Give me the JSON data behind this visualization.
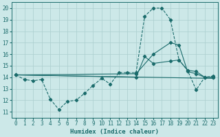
{
  "background_color": "#cce8e8",
  "grid_color": "#aacece",
  "line_color": "#1a6b6b",
  "xlabel": "Humidex (Indice chaleur)",
  "xlim": [
    -0.5,
    23.5
  ],
  "ylim": [
    10.5,
    20.5
  ],
  "yticks": [
    11,
    12,
    13,
    14,
    15,
    16,
    17,
    18,
    19,
    20
  ],
  "xticks": [
    0,
    1,
    2,
    3,
    4,
    5,
    6,
    7,
    8,
    9,
    10,
    11,
    12,
    13,
    14,
    15,
    16,
    17,
    18,
    19,
    20,
    21,
    22,
    23
  ],
  "series1_x": [
    0,
    1,
    2,
    3,
    4,
    5,
    6,
    7,
    8,
    9,
    10,
    11,
    12,
    13,
    14,
    15,
    16,
    17,
    18,
    19,
    20,
    21,
    22,
    23
  ],
  "series1_y": [
    14.2,
    13.8,
    13.7,
    13.8,
    12.1,
    11.2,
    11.9,
    12.0,
    12.6,
    13.3,
    13.9,
    13.4,
    14.4,
    14.4,
    14.4,
    19.3,
    20.0,
    20.0,
    19.0,
    15.5,
    14.6,
    12.9,
    14.0,
    14.1
  ],
  "series2_x": [
    0,
    23
  ],
  "series2_y": [
    14.2,
    13.9
  ],
  "series3_x": [
    0,
    14,
    15,
    16,
    18,
    19,
    20,
    21,
    22,
    23
  ],
  "series3_y": [
    14.2,
    14.0,
    15.8,
    15.2,
    15.4,
    15.5,
    14.6,
    14.5,
    14.0,
    14.0
  ],
  "series4_x": [
    0,
    14,
    16,
    18,
    19,
    20,
    21,
    22,
    23
  ],
  "series4_y": [
    14.2,
    14.3,
    16.0,
    17.0,
    16.8,
    14.5,
    14.3,
    14.0,
    14.0
  ]
}
